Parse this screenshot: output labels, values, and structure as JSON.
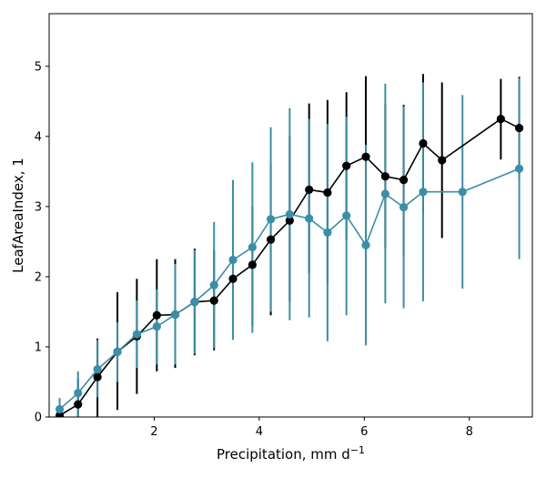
{
  "chart_data": {
    "type": "line",
    "title": "",
    "xlabel": "Precipitation,  mm d",
    "xlabel_sup": "−1",
    "ylabel": "LeafAreaIndex,  1",
    "xlim": [
      0.0,
      9.2
    ],
    "ylim": [
      0,
      5.75
    ],
    "xticks": [
      2,
      4,
      6,
      8
    ],
    "yticks": [
      0,
      1,
      2,
      3,
      4,
      5
    ],
    "grid": false,
    "legend": "none",
    "series": [
      {
        "color": "#000000",
        "points": [
          {
            "x": 0.2,
            "y": 0.02,
            "lo": 0.0,
            "hi": 0.15
          },
          {
            "x": 0.55,
            "y": 0.18,
            "lo": 0.0,
            "hi": 0.55
          },
          {
            "x": 0.92,
            "y": 0.57,
            "lo": 0.0,
            "hi": 1.12
          },
          {
            "x": 1.3,
            "y": 0.93,
            "lo": 0.1,
            "hi": 1.78
          },
          {
            "x": 1.67,
            "y": 1.15,
            "lo": 0.33,
            "hi": 1.97
          },
          {
            "x": 2.05,
            "y": 1.45,
            "lo": 0.65,
            "hi": 2.25
          },
          {
            "x": 2.4,
            "y": 1.46,
            "lo": 0.7,
            "hi": 2.25
          },
          {
            "x": 2.77,
            "y": 1.64,
            "lo": 0.88,
            "hi": 2.4
          },
          {
            "x": 3.14,
            "y": 1.66,
            "lo": 0.95,
            "hi": 2.37
          },
          {
            "x": 3.5,
            "y": 1.97,
            "lo": 1.2,
            "hi": 2.8
          },
          {
            "x": 3.87,
            "y": 2.17,
            "lo": 1.3,
            "hi": 3.0
          },
          {
            "x": 4.22,
            "y": 2.53,
            "lo": 1.45,
            "hi": 3.6
          },
          {
            "x": 4.58,
            "y": 2.8,
            "lo": 1.65,
            "hi": 4.0
          },
          {
            "x": 4.95,
            "y": 3.24,
            "lo": 2.05,
            "hi": 4.47
          },
          {
            "x": 5.3,
            "y": 3.2,
            "lo": 1.9,
            "hi": 4.52
          },
          {
            "x": 5.66,
            "y": 3.58,
            "lo": 2.53,
            "hi": 4.63
          },
          {
            "x": 6.03,
            "y": 3.71,
            "lo": 2.55,
            "hi": 4.86
          },
          {
            "x": 6.4,
            "y": 3.43,
            "lo": 2.4,
            "hi": 4.46
          },
          {
            "x": 6.75,
            "y": 3.38,
            "lo": 2.3,
            "hi": 4.45
          },
          {
            "x": 7.12,
            "y": 3.9,
            "lo": 2.9,
            "hi": 4.89
          },
          {
            "x": 7.48,
            "y": 3.66,
            "lo": 2.55,
            "hi": 4.77
          },
          {
            "x": 8.6,
            "y": 4.25,
            "lo": 3.67,
            "hi": 4.82
          },
          {
            "x": 8.95,
            "y": 4.12,
            "lo": 3.4,
            "hi": 4.85
          }
        ]
      },
      {
        "color": "#3a8fa8",
        "points": [
          {
            "x": 0.2,
            "y": 0.11,
            "lo": 0.0,
            "hi": 0.27
          },
          {
            "x": 0.55,
            "y": 0.34,
            "lo": 0.0,
            "hi": 0.65
          },
          {
            "x": 0.92,
            "y": 0.68,
            "lo": 0.28,
            "hi": 1.1
          },
          {
            "x": 1.3,
            "y": 0.93,
            "lo": 0.5,
            "hi": 1.35
          },
          {
            "x": 1.67,
            "y": 1.18,
            "lo": 0.7,
            "hi": 1.66
          },
          {
            "x": 2.05,
            "y": 1.29,
            "lo": 0.75,
            "hi": 1.82
          },
          {
            "x": 2.4,
            "y": 1.46,
            "lo": 0.75,
            "hi": 2.18
          },
          {
            "x": 2.77,
            "y": 1.64,
            "lo": 0.9,
            "hi": 2.38
          },
          {
            "x": 3.14,
            "y": 1.88,
            "lo": 0.98,
            "hi": 2.78
          },
          {
            "x": 3.5,
            "y": 2.24,
            "lo": 1.1,
            "hi": 3.38
          },
          {
            "x": 3.87,
            "y": 2.42,
            "lo": 1.2,
            "hi": 3.63
          },
          {
            "x": 4.22,
            "y": 2.82,
            "lo": 1.5,
            "hi": 4.13
          },
          {
            "x": 4.58,
            "y": 2.89,
            "lo": 1.38,
            "hi": 4.4
          },
          {
            "x": 4.95,
            "y": 2.83,
            "lo": 1.42,
            "hi": 4.25
          },
          {
            "x": 5.3,
            "y": 2.63,
            "lo": 1.08,
            "hi": 4.18
          },
          {
            "x": 5.66,
            "y": 2.87,
            "lo": 1.45,
            "hi": 4.28
          },
          {
            "x": 6.03,
            "y": 2.45,
            "lo": 1.02,
            "hi": 3.88
          },
          {
            "x": 6.4,
            "y": 3.18,
            "lo": 1.62,
            "hi": 4.75
          },
          {
            "x": 6.75,
            "y": 2.99,
            "lo": 1.55,
            "hi": 4.43
          },
          {
            "x": 7.12,
            "y": 3.21,
            "lo": 1.65,
            "hi": 4.77
          },
          {
            "x": 7.87,
            "y": 3.21,
            "lo": 1.83,
            "hi": 4.59
          },
          {
            "x": 8.95,
            "y": 3.54,
            "lo": 2.25,
            "hi": 4.83
          }
        ]
      }
    ]
  }
}
